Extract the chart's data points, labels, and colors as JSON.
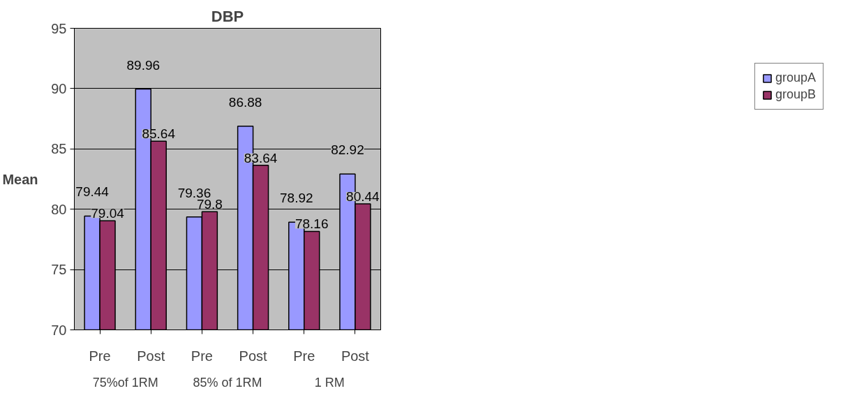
{
  "chart_data": {
    "type": "bar",
    "title": "DBP",
    "ylabel": "Mean",
    "categories": [
      "Pre",
      "Post",
      "Pre",
      "Post",
      "Pre",
      "Post"
    ],
    "series": [
      {
        "name": "groupA",
        "color": "#9999ff",
        "values": [
          79.44,
          89.96,
          79.36,
          86.88,
          78.92,
          82.92
        ]
      },
      {
        "name": "groupB",
        "color": "#993366",
        "values": [
          79.04,
          85.64,
          79.8,
          83.64,
          78.16,
          80.44
        ]
      }
    ],
    "ylim": [
      70,
      95
    ],
    "yticks": [
      70,
      75,
      80,
      85,
      90,
      95
    ],
    "grid": "y",
    "legend": "right",
    "data_labels": true,
    "annotations": [
      "75%of 1RM",
      "85% of 1RM",
      "1 RM"
    ]
  }
}
